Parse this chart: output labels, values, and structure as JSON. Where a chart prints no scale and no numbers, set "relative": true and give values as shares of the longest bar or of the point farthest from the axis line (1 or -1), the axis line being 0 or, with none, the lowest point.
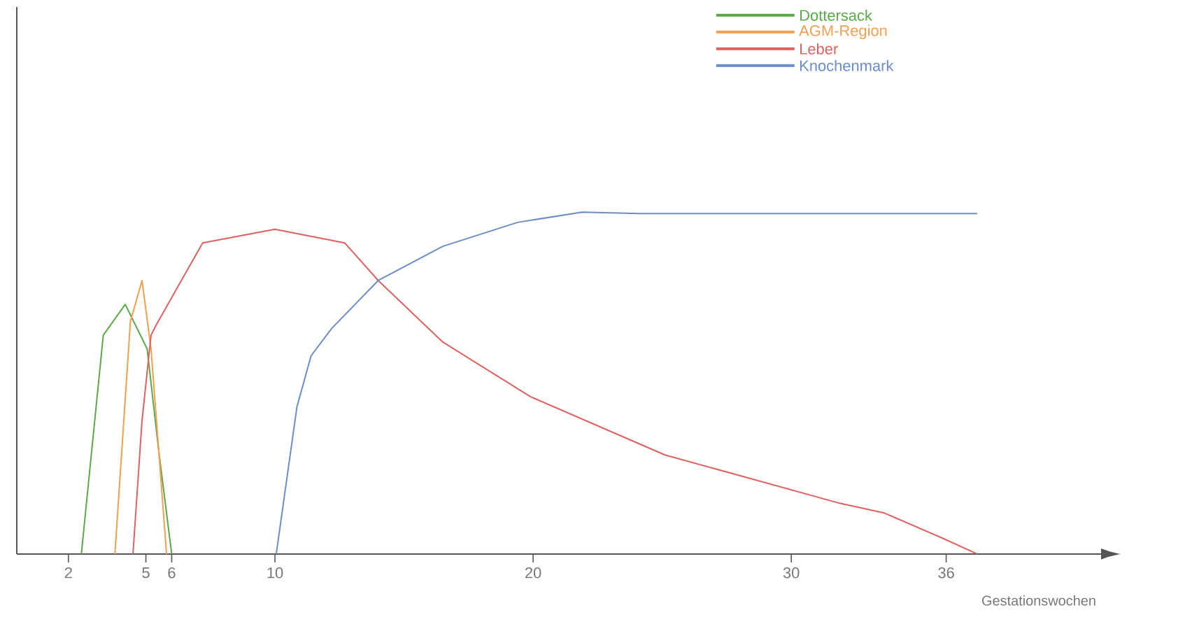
{
  "chart_data": {
    "type": "line",
    "relative": true,
    "xlabel": "Gestationswochen",
    "xlim": [
      0,
      42
    ],
    "xticks": [
      2,
      5,
      6,
      10,
      20,
      30,
      36
    ],
    "legend": "top right",
    "grid": false,
    "series": [
      {
        "name": "Dottersack",
        "color": "#5aa84a",
        "x": [
          2.5,
          3.35,
          4.2,
          5.05,
          5.5,
          6.0
        ],
        "values": [
          0,
          0.64,
          0.73,
          0.6,
          0.3,
          0
        ]
      },
      {
        "name": "AGM-Region",
        "color": "#f0a050",
        "x": [
          3.8,
          4.4,
          4.85,
          5.2,
          5.5,
          5.8
        ],
        "values": [
          0,
          0.68,
          0.8,
          0.6,
          0.3,
          0
        ]
      },
      {
        "name": "Leber",
        "color": "#e06060",
        "x": [
          4.5,
          4.85,
          5.2,
          5.4,
          7.2,
          10.0,
          12.7,
          14.0,
          16.5,
          19.9,
          25.1,
          31.8,
          33.6,
          35.9,
          37.2
        ],
        "values": [
          0,
          0.39,
          0.64,
          0.67,
          0.91,
          0.95,
          0.91,
          0.8,
          0.62,
          0.46,
          0.29,
          0.15,
          0.12,
          0.045,
          0
        ]
      },
      {
        "name": "Knochenmark",
        "color": "#6a8cc8",
        "x": [
          10.05,
          10.85,
          11.4,
          12.2,
          14.0,
          16.5,
          19.4,
          21.9,
          24.1,
          37.2
        ],
        "values": [
          0,
          0.43,
          0.58,
          0.66,
          0.8,
          0.9,
          0.97,
          1.0,
          0.996,
          0.996
        ]
      }
    ]
  }
}
